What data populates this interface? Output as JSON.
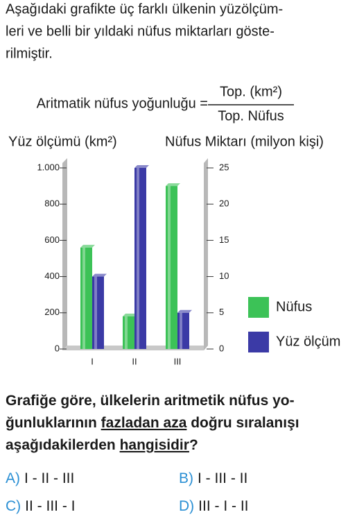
{
  "intro": [
    "Aşağıdaki grafikte üç farklı ülkenin yüzölçüm-",
    "leri ve belli bir yıldaki nüfus miktarları göste-",
    "rilmiştir."
  ],
  "formula": {
    "label": "Aritmatik nüfus yoğunluğu =",
    "numerator": "Top. (km²)",
    "denominator": "Top. Nüfus"
  },
  "chart_data": {
    "type": "bar",
    "ylabel": "Yüz ölçümü (km²)",
    "y2label": "Nüfus Miktarı (milyon kişi)",
    "categories": [
      "I",
      "II",
      "III"
    ],
    "series": [
      {
        "name": "Nüfus",
        "color": "#3cc257",
        "axis": "y2",
        "values": [
          14,
          4.5,
          22.5
        ]
      },
      {
        "name": "Yüz ölçüm",
        "color": "#3b3aa6",
        "values": [
          400,
          1000,
          200
        ]
      }
    ],
    "ylim": [
      0,
      1000
    ],
    "yticks": [
      0,
      200,
      400,
      600,
      800,
      {
        "value": 1000,
        "label": "1.000"
      }
    ],
    "y2lim": [
      0,
      25
    ],
    "y2ticks": [
      0,
      5,
      10,
      15,
      20,
      25
    ],
    "legend": "right"
  },
  "question": [
    [
      "Grafiğe göre, ülkelerin aritmetik nüfus yo-"
    ],
    [
      "ğunluklarının ",
      "fazladan aza",
      " doğru sıralanışı"
    ],
    [
      "aşağıdakilerden ",
      "hangisidir",
      "?"
    ]
  ],
  "options": [
    {
      "letter": "A)",
      "text": "I - II - III"
    },
    {
      "letter": "B)",
      "text": "I - III - II"
    },
    {
      "letter": "C)",
      "text": "II - III - I"
    },
    {
      "letter": "D)",
      "text": "III - I - II"
    }
  ]
}
